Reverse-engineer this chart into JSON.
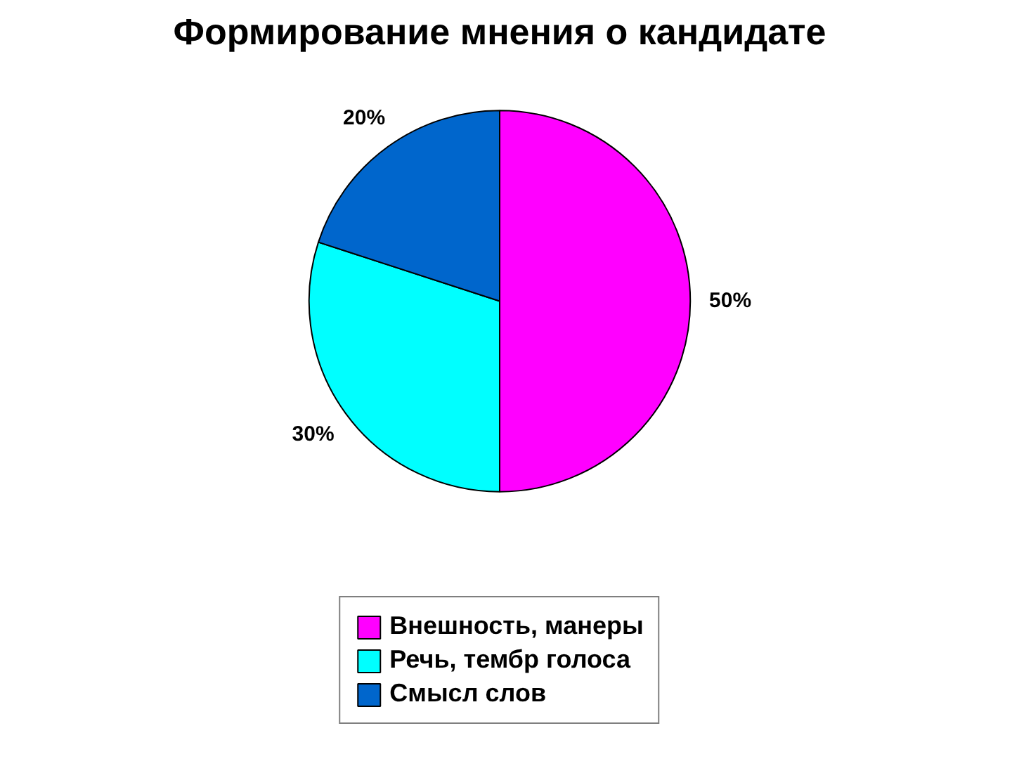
{
  "chart_data": {
    "type": "pie",
    "title": "Формирование мнения о кандидате",
    "categories": [
      "Внешность, манеры",
      "Речь, тембр голоса",
      "Смысл слов"
    ],
    "values": [
      50,
      30,
      20
    ],
    "colors": [
      "#ff00ff",
      "#00ffff",
      "#0066cc"
    ],
    "value_labels": [
      "50%",
      "30%",
      "20%"
    ],
    "legend": "bottom"
  }
}
